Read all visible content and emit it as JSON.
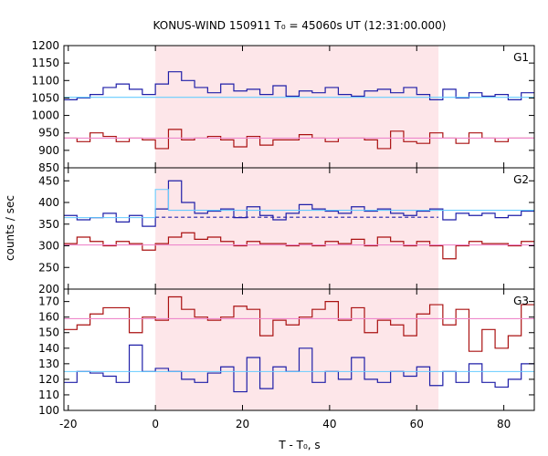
{
  "chart_data": {
    "type": "line",
    "title": "KONUS-WIND 150911 T₀ = 45060s UT (12:31:00.000)",
    "xlabel": "T - T₀, s",
    "ylabel": "counts / sec",
    "xlim": [
      -21,
      87
    ],
    "xticks": [
      -20,
      0,
      20,
      40,
      60,
      80
    ],
    "shaded_interval": [
      0,
      65
    ],
    "bin_edges": [
      -21,
      -18,
      -15,
      -12,
      -9,
      -6,
      -3,
      0,
      3,
      6,
      9,
      12,
      15,
      18,
      21,
      24,
      27,
      30,
      33,
      36,
      39,
      42,
      45,
      48,
      51,
      54,
      57,
      60,
      63,
      66,
      69,
      72,
      75,
      78,
      81,
      84,
      87
    ],
    "panels": [
      {
        "label": "G1",
        "ylim": [
          850,
          1200
        ],
        "yticks": [
          850,
          900,
          950,
          1000,
          1050,
          1100,
          1150,
          1200
        ],
        "series": [
          {
            "color": "#1f1fa8",
            "values": [
              1045,
              1050,
              1060,
              1080,
              1090,
              1075,
              1060,
              1090,
              1125,
              1100,
              1080,
              1065,
              1090,
              1070,
              1075,
              1060,
              1085,
              1055,
              1070,
              1065,
              1080,
              1060,
              1055,
              1070,
              1075,
              1065,
              1080,
              1060,
              1045,
              1075,
              1050,
              1065,
              1055,
              1060,
              1045,
              1065
            ]
          },
          {
            "color": "#aa1111",
            "values": [
              935,
              925,
              950,
              940,
              925,
              935,
              930,
              905,
              960,
              930,
              935,
              940,
              930,
              910,
              940,
              915,
              930,
              930,
              945,
              935,
              925,
              935,
              935,
              930,
              905,
              955,
              925,
              920,
              950,
              935,
              920,
              950,
              935,
              925,
              935,
              935
            ]
          },
          {
            "color": "#66ccff",
            "level_ranges": [
              [
                -21,
                87,
                1052
              ]
            ]
          },
          {
            "color": "#ee88cc",
            "level_ranges": [
              [
                -21,
                87,
                935
              ]
            ]
          }
        ]
      },
      {
        "label": "G2",
        "ylim": [
          200,
          480
        ],
        "yticks": [
          200,
          250,
          300,
          350,
          400,
          450
        ],
        "series": [
          {
            "color": "#1f1fa8",
            "values": [
              370,
              360,
              365,
              375,
              355,
              370,
              345,
              385,
              450,
              400,
              375,
              380,
              385,
              365,
              390,
              370,
              360,
              375,
              395,
              385,
              380,
              375,
              390,
              380,
              385,
              375,
              370,
              380,
              385,
              360,
              375,
              370,
              375,
              365,
              370,
              380
            ]
          },
          {
            "color": "#aa1111",
            "values": [
              305,
              320,
              310,
              300,
              310,
              305,
              290,
              305,
              320,
              330,
              315,
              320,
              310,
              300,
              310,
              305,
              305,
              300,
              305,
              300,
              310,
              305,
              315,
              300,
              320,
              310,
              300,
              310,
              300,
              270,
              300,
              310,
              305,
              305,
              300,
              310
            ]
          },
          {
            "color": "#66ccff",
            "level_ranges": [
              [
                -21,
                0,
                365
              ],
              [
                0,
                3,
                430
              ],
              [
                3,
                87,
                382
              ]
            ]
          },
          {
            "color": "#2222aa",
            "dashed": true,
            "level_ranges": [
              [
                0,
                65,
                366
              ]
            ]
          },
          {
            "color": "#ee88cc",
            "level_ranges": [
              [
                -21,
                87,
                302
              ]
            ]
          }
        ]
      },
      {
        "label": "G3",
        "ylim": [
          100,
          178
        ],
        "yticks": [
          100,
          110,
          120,
          130,
          140,
          150,
          160,
          170
        ],
        "series": [
          {
            "color": "#aa1111",
            "values": [
              152,
              155,
              162,
              166,
              166,
              150,
              160,
              158,
              173,
              165,
              160,
              158,
              160,
              167,
              165,
              148,
              158,
              155,
              160,
              165,
              170,
              158,
              166,
              150,
              158,
              155,
              148,
              162,
              168,
              155,
              165,
              138,
              152,
              140,
              148,
              168
            ]
          },
          {
            "color": "#1f1fa8",
            "values": [
              118,
              125,
              124,
              122,
              118,
              142,
              125,
              127,
              125,
              120,
              118,
              124,
              128,
              112,
              134,
              114,
              128,
              125,
              140,
              118,
              125,
              120,
              134,
              120,
              118,
              125,
              122,
              128,
              116,
              125,
              118,
              130,
              118,
              115,
              120,
              130
            ]
          },
          {
            "color": "#66ccff",
            "level_ranges": [
              [
                -21,
                87,
                125
              ]
            ]
          },
          {
            "color": "#ee88cc",
            "level_ranges": [
              [
                -21,
                87,
                159
              ]
            ]
          }
        ]
      }
    ]
  }
}
